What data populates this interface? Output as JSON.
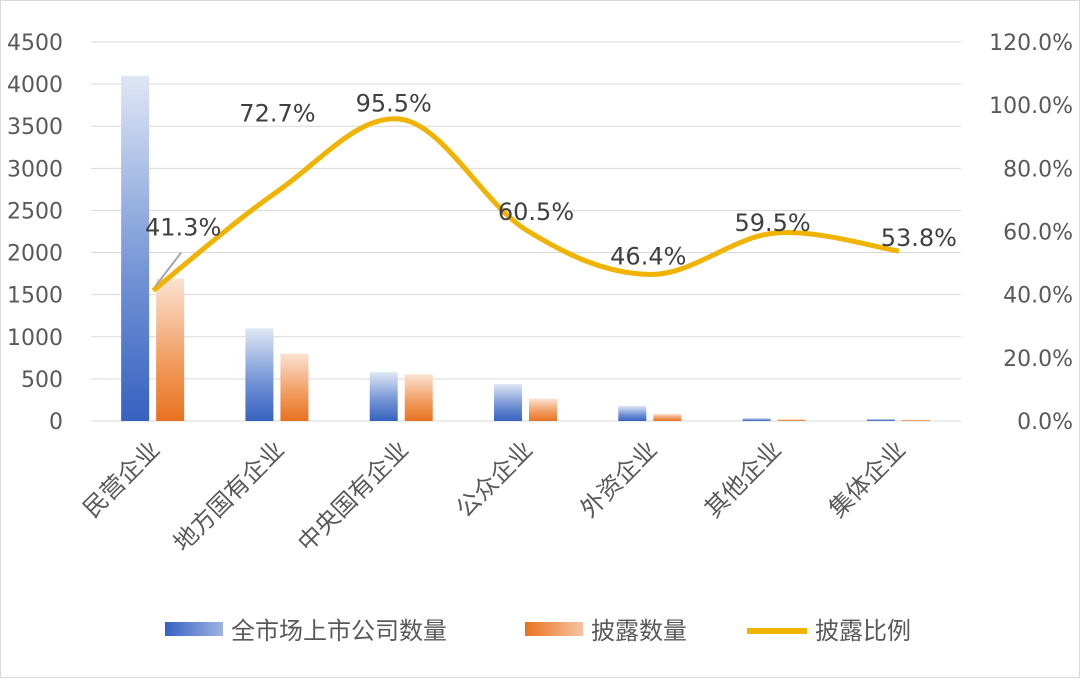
{
  "chart_data": {
    "type": "bar+line",
    "categories": [
      "民营企业",
      "地方国有企业",
      "中央国有企业",
      "公众企业",
      "外资企业",
      "其他企业",
      "集体企业"
    ],
    "series": [
      {
        "name": "全市场上市公司数量",
        "type": "bar",
        "axis": "left",
        "values": [
          4100,
          1100,
          580,
          440,
          180,
          35,
          25
        ],
        "color": "#4472c4"
      },
      {
        "name": "披露数量",
        "type": "bar",
        "axis": "left",
        "values": [
          1690,
          800,
          555,
          265,
          85,
          20,
          14
        ],
        "color": "#ed7d31"
      },
      {
        "name": "披露比例",
        "type": "line",
        "axis": "right",
        "values": [
          41.3,
          72.7,
          95.5,
          60.5,
          46.4,
          59.5,
          53.8
        ],
        "labels": [
          "41.3%",
          "72.7%",
          "95.5%",
          "60.5%",
          "46.4%",
          "59.5%",
          "53.8%"
        ],
        "color": "#f0b400"
      }
    ],
    "left_axis": {
      "ylim": [
        0,
        4500
      ],
      "ticks": [
        "0",
        "500",
        "1000",
        "1500",
        "2000",
        "2500",
        "3000",
        "3500",
        "4000",
        "4500"
      ]
    },
    "right_axis": {
      "ylim": [
        0,
        120
      ],
      "ticks": [
        "0.0%",
        "20.0%",
        "40.0%",
        "60.0%",
        "80.0%",
        "100.0%",
        "120.0%"
      ]
    },
    "grid": true,
    "legend_position": "bottom"
  }
}
